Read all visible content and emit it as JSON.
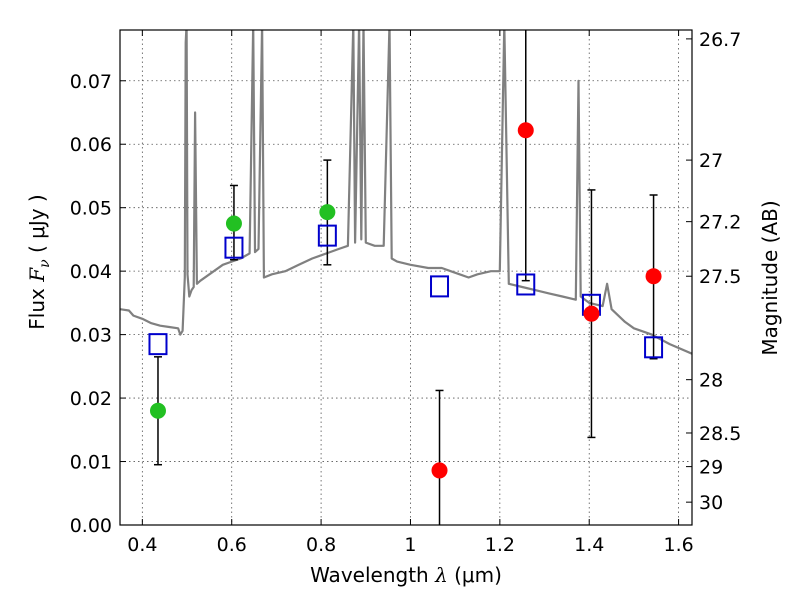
{
  "chart_data": {
    "type": "scatter",
    "xlabel": "Wavelength  λ (μm)",
    "ylabel": "Flux  F_ν  ( μJy )",
    "ylabel_parts": {
      "prefix": "Flux  ",
      "symbol": "F",
      "subscript": "ν",
      "unit": "  ( μJy )"
    },
    "xlabel_parts": {
      "prefix": "Wavelength  ",
      "symbol": "λ",
      "unit": " (μm)"
    },
    "y2label": "Magnitude (AB)",
    "xlim": [
      0.35,
      1.63
    ],
    "ylim": [
      0,
      0.078
    ],
    "grid": true,
    "x_ticks": [
      0.4,
      0.6,
      0.8,
      1.0,
      1.2,
      1.4,
      1.6
    ],
    "x_tick_labels": [
      "0.4",
      "0.6",
      "0.8",
      "1",
      "1.2",
      "1.4",
      "1.6"
    ],
    "y_ticks": [
      0,
      0.01,
      0.02,
      0.03,
      0.04,
      0.05,
      0.06,
      0.07
    ],
    "y_tick_labels": [
      "0.00",
      "0.01",
      "0.02",
      "0.03",
      "0.04",
      "0.05",
      "0.06",
      "0.07"
    ],
    "y2_ticks": [
      {
        "label": "26.7",
        "flux": 0.0766
      },
      {
        "label": "27",
        "flux": 0.0575
      },
      {
        "label": "27.2",
        "flux": 0.0478
      },
      {
        "label": "27.5",
        "flux": 0.0392
      },
      {
        "label": "28",
        "flux": 0.0229
      },
      {
        "label": "28.5",
        "flux": 0.0145
      },
      {
        "label": "29",
        "flux": 0.0092
      },
      {
        "label": "30",
        "flux": 0.0036
      }
    ],
    "colors": {
      "model": "#808080",
      "detection": "#22c022",
      "nondetection": "#ff0000",
      "model_flux": "#0000cc",
      "errorbar": "#000000",
      "grid": "#555555"
    },
    "series": [
      {
        "kind": "line",
        "points": [
          [
            0.35,
            0.034
          ],
          [
            0.37,
            0.0338
          ],
          [
            0.38,
            0.033
          ],
          [
            0.4,
            0.0325
          ],
          [
            0.42,
            0.0318
          ],
          [
            0.44,
            0.0314
          ],
          [
            0.46,
            0.0312
          ],
          [
            0.48,
            0.031
          ],
          [
            0.485,
            0.03
          ],
          [
            0.49,
            0.0306
          ],
          [
            0.495,
            0.039
          ],
          [
            0.497,
            0.076
          ],
          [
            0.499,
            0.079
          ],
          [
            0.501,
            0.0395
          ],
          [
            0.505,
            0.036
          ],
          [
            0.51,
            0.037
          ],
          [
            0.515,
            0.0375
          ],
          [
            0.518,
            0.065
          ],
          [
            0.522,
            0.038
          ],
          [
            0.53,
            0.0385
          ],
          [
            0.55,
            0.0395
          ],
          [
            0.58,
            0.041
          ],
          [
            0.6,
            0.0415
          ],
          [
            0.62,
            0.042
          ],
          [
            0.64,
            0.0428
          ],
          [
            0.648,
            0.079
          ],
          [
            0.652,
            0.043
          ],
          [
            0.66,
            0.0435
          ],
          [
            0.668,
            0.079
          ],
          [
            0.672,
            0.039
          ],
          [
            0.69,
            0.0395
          ],
          [
            0.72,
            0.04
          ],
          [
            0.75,
            0.041
          ],
          [
            0.78,
            0.042
          ],
          [
            0.8,
            0.0425
          ],
          [
            0.82,
            0.043
          ],
          [
            0.84,
            0.0435
          ],
          [
            0.86,
            0.044
          ],
          [
            0.872,
            0.079
          ],
          [
            0.876,
            0.0445
          ],
          [
            0.885,
            0.079
          ],
          [
            0.89,
            0.045
          ],
          [
            0.895,
            0.079
          ],
          [
            0.9,
            0.0445
          ],
          [
            0.92,
            0.044
          ],
          [
            0.94,
            0.044
          ],
          [
            0.953,
            0.079
          ],
          [
            0.958,
            0.042
          ],
          [
            0.97,
            0.0415
          ],
          [
            1.0,
            0.041
          ],
          [
            1.04,
            0.0405
          ],
          [
            1.07,
            0.0405
          ],
          [
            1.09,
            0.04
          ],
          [
            1.11,
            0.0395
          ],
          [
            1.13,
            0.039
          ],
          [
            1.15,
            0.0395
          ],
          [
            1.18,
            0.04
          ],
          [
            1.2,
            0.04
          ],
          [
            1.21,
            0.079
          ],
          [
            1.22,
            0.038
          ],
          [
            1.25,
            0.0375
          ],
          [
            1.28,
            0.037
          ],
          [
            1.31,
            0.0365
          ],
          [
            1.34,
            0.036
          ],
          [
            1.37,
            0.0355
          ],
          [
            1.376,
            0.07
          ],
          [
            1.381,
            0.036
          ],
          [
            1.4,
            0.035
          ],
          [
            1.43,
            0.0345
          ],
          [
            1.44,
            0.038
          ],
          [
            1.45,
            0.034
          ],
          [
            1.48,
            0.032
          ],
          [
            1.5,
            0.031
          ],
          [
            1.54,
            0.03
          ],
          [
            1.58,
            0.0285
          ],
          [
            1.63,
            0.027
          ]
        ]
      },
      {
        "kind": "model_flux",
        "points": [
          [
            0.435,
            0.0285
          ],
          [
            0.605,
            0.0437
          ],
          [
            0.814,
            0.0456
          ],
          [
            1.065,
            0.0376
          ],
          [
            1.258,
            0.0379
          ],
          [
            1.405,
            0.0347
          ],
          [
            1.544,
            0.028
          ]
        ]
      },
      {
        "kind": "detection",
        "points": [
          [
            0.435,
            0.018,
            0.0095,
            0.0265
          ],
          [
            0.605,
            0.0475,
            0.0418,
            0.0535
          ],
          [
            0.814,
            0.0493,
            0.041,
            0.0575
          ]
        ]
      },
      {
        "kind": "nondetection",
        "points": [
          [
            1.065,
            0.0086,
            -0.002,
            0.0212
          ],
          [
            1.258,
            0.0622,
            0.0385,
            0.079
          ],
          [
            1.405,
            0.0333,
            0.0138,
            0.0528
          ],
          [
            1.544,
            0.0392,
            0.0262,
            0.052
          ]
        ]
      }
    ]
  }
}
